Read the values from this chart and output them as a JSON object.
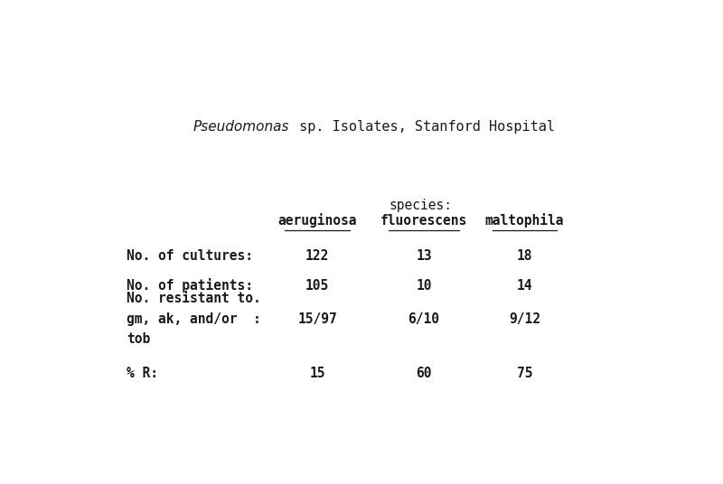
{
  "title_italic": "Pseudomonas",
  "title_rest": " sp. Isolates, Stanford Hospital",
  "species_label": "species:",
  "col_headers": [
    "aeruginosa",
    "fluorescens",
    "maltophila"
  ],
  "row_labels_lines": [
    [
      "No. of cultures:"
    ],
    [
      "No. of patients:"
    ],
    [
      "No. resistant to.",
      "gm, ak, and/or  :",
      "tob"
    ],
    [
      "% R:"
    ]
  ],
  "data": [
    [
      "122",
      "13",
      "18"
    ],
    [
      "105",
      "10",
      "14"
    ],
    [
      "15/97",
      "6/10",
      "9/12"
    ],
    [
      "15",
      "60",
      "75"
    ]
  ],
  "bg_color": "#ffffff",
  "text_color": "#1a1a1a",
  "font_size": 10.5,
  "title_font_size": 11
}
